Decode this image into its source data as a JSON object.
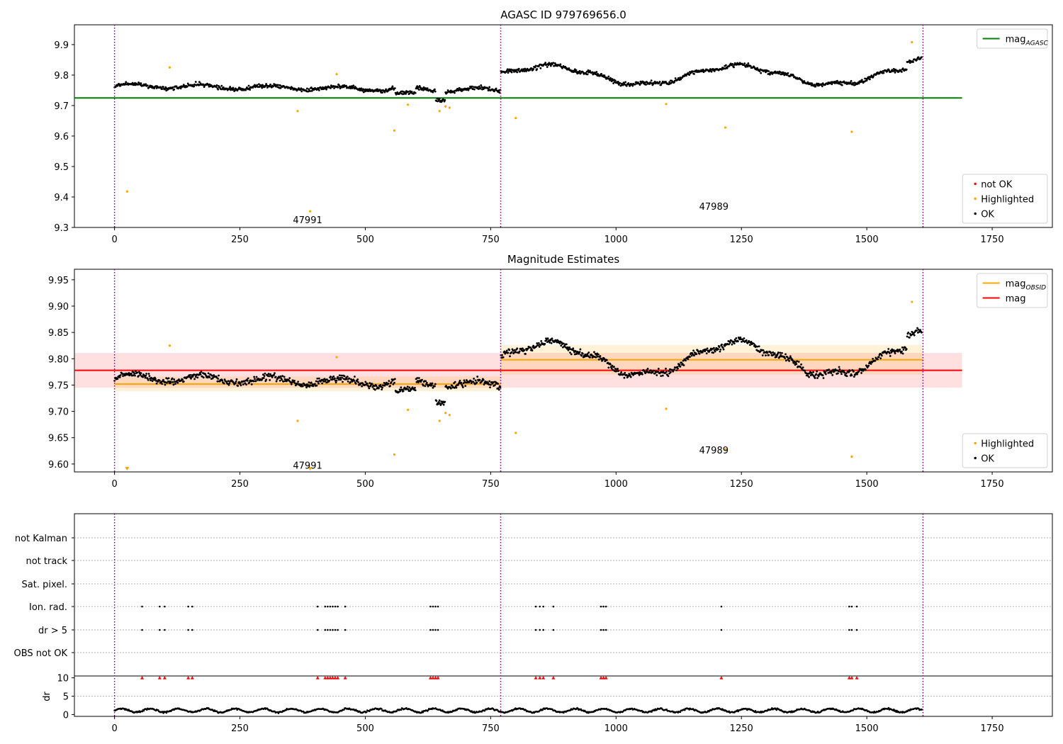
{
  "chart_data": [
    {
      "type": "scatter",
      "title": "AGASC ID 979769656.0",
      "xlim": [
        -80,
        1870
      ],
      "ylim": [
        9.3,
        9.965
      ],
      "xticks": [
        0,
        250,
        500,
        750,
        1000,
        1250,
        1500,
        1750
      ],
      "yticks": [
        9.3,
        9.4,
        9.5,
        9.6,
        9.7,
        9.8,
        9.9
      ],
      "ytick_decimals": 1,
      "obsid_boundaries": [
        0,
        770,
        1612
      ],
      "obsid_labels": [
        {
          "text": "47991",
          "x": 385,
          "y": 9.325
        },
        {
          "text": "47989",
          "x": 1195,
          "y": 9.37
        }
      ],
      "lines": [
        {
          "name": "mag_AGASC",
          "label": "mag",
          "sub": "AGASC",
          "color": "#008000",
          "x": [
            -80,
            1690
          ],
          "y": [
            9.725,
            9.725
          ]
        }
      ],
      "bands": [],
      "series": [
        {
          "name": "not OK",
          "color": "#ff0000",
          "points": []
        },
        {
          "name": "Highlighted",
          "color": "#ffa500",
          "points": [
            [
              25,
              9.418
            ],
            [
              110,
              9.825
            ],
            [
              365,
              9.682
            ],
            [
              390,
              9.353
            ],
            [
              443,
              9.803
            ],
            [
              558,
              9.618
            ],
            [
              585,
              9.703
            ],
            [
              648,
              9.682
            ],
            [
              660,
              9.697
            ],
            [
              668,
              9.693
            ],
            [
              800,
              9.659
            ],
            [
              1100,
              9.705
            ],
            [
              1218,
              9.628
            ],
            [
              1470,
              9.614
            ],
            [
              1590,
              9.908
            ]
          ]
        },
        {
          "name": "OK",
          "color": "#000000",
          "points": []
        }
      ],
      "legend_top": [
        {
          "label": "mag",
          "sub": "AGASC",
          "color": "#008000"
        }
      ],
      "legend_bottom": [
        {
          "label": "not OK",
          "color": "#ff0000"
        },
        {
          "label": "Highlighted",
          "color": "#ffa500"
        },
        {
          "label": "OK",
          "color": "#000000"
        }
      ]
    },
    {
      "type": "scatter",
      "title": "Magnitude Estimates",
      "xlim": [
        -80,
        1870
      ],
      "ylim": [
        9.585,
        9.97
      ],
      "xticks": [
        0,
        250,
        500,
        750,
        1000,
        1250,
        1500,
        1750
      ],
      "yticks": [
        9.6,
        9.65,
        9.7,
        9.75,
        9.8,
        9.85,
        9.9,
        9.95
      ],
      "ytick_decimals": 2,
      "obsid_boundaries": [
        0,
        770,
        1612
      ],
      "obsid_labels": [
        {
          "text": "47991",
          "x": 385,
          "y": 9.598
        },
        {
          "text": "47989",
          "x": 1195,
          "y": 9.627
        }
      ],
      "lines": [
        {
          "name": "mag_OBSID_47991",
          "color": "#ffa500",
          "x": [
            0,
            770
          ],
          "y": [
            9.752,
            9.752
          ]
        },
        {
          "name": "mag_OBSID_47989",
          "color": "#ffa500",
          "x": [
            770,
            1612
          ],
          "y": [
            9.798,
            9.798
          ]
        },
        {
          "name": "mag",
          "color": "#ff0000",
          "x": [
            -80,
            1690
          ],
          "y": [
            9.778,
            9.778
          ]
        }
      ],
      "bands": [
        {
          "color": "#ff0000",
          "opacity": 0.12,
          "x": [
            -80,
            1690
          ],
          "y": [
            9.745,
            9.811
          ]
        },
        {
          "color": "#ffa500",
          "opacity": 0.15,
          "x": [
            0,
            770
          ],
          "y": [
            9.738,
            9.766
          ]
        },
        {
          "color": "#ffa500",
          "opacity": 0.15,
          "x": [
            770,
            1612
          ],
          "y": [
            9.77,
            9.826
          ]
        }
      ],
      "series": [
        {
          "name": "Highlighted",
          "color": "#ffa500",
          "points": [
            [
              110,
              9.825
            ],
            [
              365,
              9.682
            ],
            [
              443,
              9.803
            ],
            [
              558,
              9.618
            ],
            [
              585,
              9.703
            ],
            [
              648,
              9.682
            ],
            [
              660,
              9.697
            ],
            [
              668,
              9.693
            ],
            [
              800,
              9.659
            ],
            [
              1100,
              9.705
            ],
            [
              1218,
              9.628
            ],
            [
              1470,
              9.614
            ],
            [
              1590,
              9.908
            ]
          ]
        },
        {
          "name": "Highlighted-below-axis",
          "color": "#ffa500",
          "marker": "triangle-down",
          "points": [
            [
              25,
              9.59
            ],
            [
              390,
              9.59
            ]
          ]
        },
        {
          "name": "OK",
          "color": "#000000",
          "points": []
        }
      ],
      "legend_top": [
        {
          "label": "mag",
          "sub": "OBSID",
          "color": "#ffa500"
        },
        {
          "label": "mag",
          "color": "#ff0000"
        }
      ],
      "legend_bottom": [
        {
          "label": "Highlighted",
          "color": "#ffa500"
        },
        {
          "label": "OK",
          "color": "#000000"
        }
      ]
    },
    {
      "type": "scatter",
      "xlim": [
        -80,
        1870
      ],
      "xticks": [
        0,
        250,
        500,
        750,
        1000,
        1250,
        1500,
        1750
      ],
      "categories": [
        "not Kalman",
        "not track",
        "Sat. pixel.",
        "Ion. rad.",
        "dr > 5",
        "OBS not OK"
      ],
      "flag_x": [
        55,
        90,
        100,
        147,
        155,
        405,
        420,
        425,
        430,
        435,
        440,
        445,
        460,
        630,
        635,
        640,
        645,
        840,
        848,
        855,
        875,
        970,
        975,
        980,
        1210,
        1465,
        1470,
        1480
      ],
      "dr_ylabel": "dr",
      "dr_yticks": [
        0,
        5,
        10
      ],
      "dr_ylim": [
        -0.5,
        10.5
      ],
      "obsid_boundaries": [
        0,
        770,
        1612
      ]
    }
  ]
}
